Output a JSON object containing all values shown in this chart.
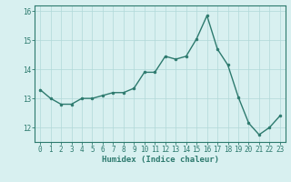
{
  "x": [
    0,
    1,
    2,
    3,
    4,
    5,
    6,
    7,
    8,
    9,
    10,
    11,
    12,
    13,
    14,
    15,
    16,
    17,
    18,
    19,
    20,
    21,
    22,
    23
  ],
  "y": [
    13.3,
    13.0,
    12.8,
    12.8,
    13.0,
    13.0,
    13.1,
    13.2,
    13.2,
    13.35,
    13.9,
    13.9,
    14.45,
    14.35,
    14.45,
    15.05,
    15.85,
    14.7,
    14.15,
    13.05,
    12.15,
    11.75,
    12.0,
    12.4
  ],
  "line_color": "#2d7a6e",
  "marker": "o",
  "marker_size": 2.0,
  "bg_color": "#d8f0f0",
  "grid_color": "#b0d8d8",
  "xlabel": "Humidex (Indice chaleur)",
  "ylim": [
    11.5,
    16.2
  ],
  "xlim": [
    -0.5,
    23.5
  ],
  "yticks": [
    12,
    13,
    14,
    15,
    16
  ],
  "xticks": [
    0,
    1,
    2,
    3,
    4,
    5,
    6,
    7,
    8,
    9,
    10,
    11,
    12,
    13,
    14,
    15,
    16,
    17,
    18,
    19,
    20,
    21,
    22,
    23
  ],
  "tick_fontsize": 5.5,
  "xlabel_fontsize": 6.5,
  "linewidth": 1.0,
  "axis_color": "#2d7a6e",
  "spine_color": "#2d7a6e"
}
